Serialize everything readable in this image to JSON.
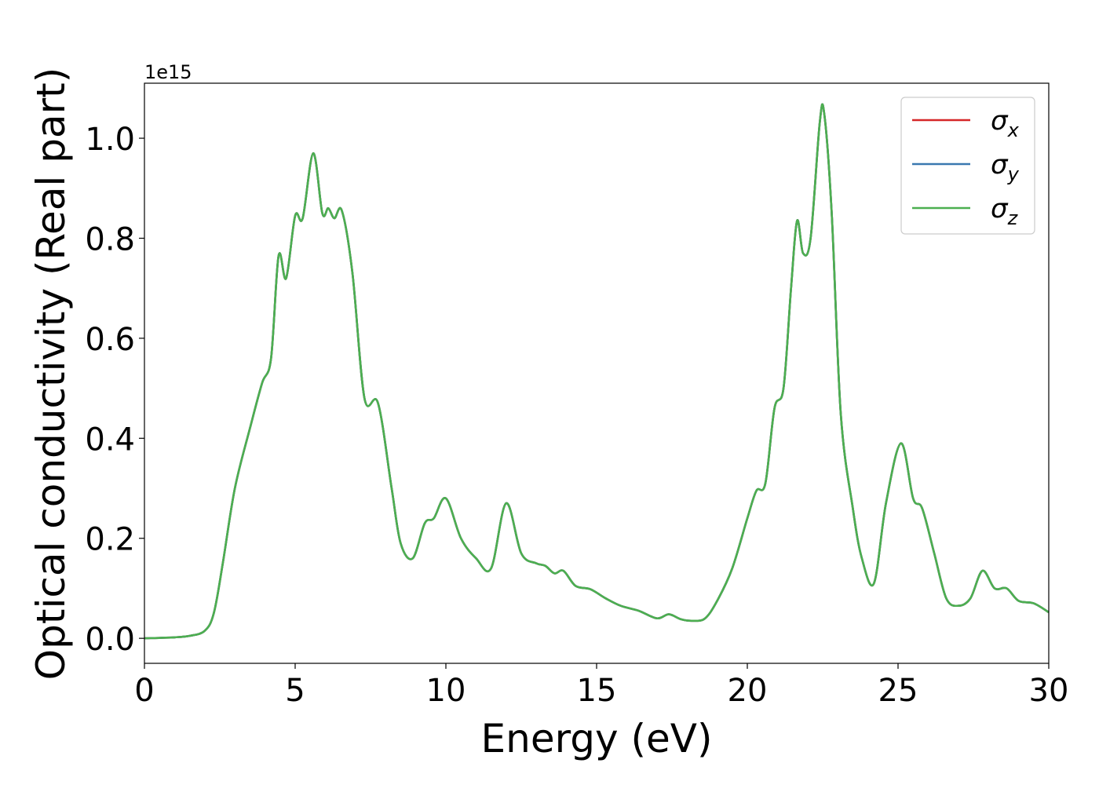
{
  "chart_data": {
    "type": "line",
    "title": "",
    "xlabel": "Energy (eV)",
    "ylabel": "Optical conductivity (Real part)",
    "y_offset_label": "1e15",
    "xlim": [
      0,
      30
    ],
    "ylim": [
      -0.05,
      1.11
    ],
    "xticks": [
      0,
      5,
      10,
      15,
      20,
      25,
      30
    ],
    "yticks": [
      0.0,
      0.2,
      0.4,
      0.6,
      0.8,
      1.0
    ],
    "xtick_labels": [
      "0",
      "5",
      "10",
      "15",
      "20",
      "25",
      "30"
    ],
    "ytick_labels": [
      "0.0",
      "0.2",
      "0.4",
      "0.6",
      "0.8",
      "1.0"
    ],
    "grid": false,
    "legend_position": "top-right",
    "series": [
      {
        "name": "σ",
        "subscript": "x",
        "color": "#d62728"
      },
      {
        "name": "σ",
        "subscript": "y",
        "color": "#3a78b0"
      },
      {
        "name": "σ",
        "subscript": "z",
        "color": "#4caf50"
      }
    ],
    "x": [
      0,
      1,
      1.5,
      2,
      2.3,
      2.6,
      3.0,
      3.5,
      3.9,
      4.2,
      4.45,
      4.7,
      5.0,
      5.25,
      5.6,
      5.9,
      6.1,
      6.3,
      6.55,
      6.9,
      7.3,
      7.75,
      8.2,
      8.5,
      8.9,
      9.3,
      9.6,
      10.0,
      10.5,
      11.0,
      11.5,
      12.0,
      12.5,
      13.0,
      13.3,
      13.6,
      13.9,
      14.3,
      14.8,
      15.3,
      15.8,
      16.4,
      17.0,
      17.4,
      17.8,
      18.2,
      18.6,
      19.0,
      19.5,
      20.0,
      20.3,
      20.6,
      20.9,
      21.2,
      21.45,
      21.65,
      21.85,
      22.1,
      22.4,
      22.55,
      22.8,
      23.1,
      23.5,
      23.8,
      24.2,
      24.6,
      25.1,
      25.5,
      25.8,
      26.2,
      26.6,
      27.0,
      27.4,
      27.8,
      28.2,
      28.6,
      29.0,
      29.5,
      30.0
    ],
    "y": [
      0.0,
      0.002,
      0.005,
      0.015,
      0.05,
      0.15,
      0.3,
      0.42,
      0.51,
      0.56,
      0.765,
      0.72,
      0.845,
      0.84,
      0.97,
      0.85,
      0.86,
      0.84,
      0.855,
      0.73,
      0.48,
      0.47,
      0.3,
      0.19,
      0.16,
      0.23,
      0.24,
      0.28,
      0.2,
      0.16,
      0.14,
      0.27,
      0.17,
      0.15,
      0.145,
      0.13,
      0.135,
      0.105,
      0.098,
      0.08,
      0.065,
      0.055,
      0.04,
      0.048,
      0.038,
      0.035,
      0.04,
      0.075,
      0.14,
      0.24,
      0.295,
      0.31,
      0.46,
      0.5,
      0.7,
      0.835,
      0.77,
      0.8,
      1.03,
      1.05,
      0.85,
      0.45,
      0.26,
      0.16,
      0.11,
      0.27,
      0.39,
      0.28,
      0.26,
      0.17,
      0.08,
      0.065,
      0.08,
      0.135,
      0.1,
      0.1,
      0.075,
      0.07,
      0.052
    ]
  }
}
